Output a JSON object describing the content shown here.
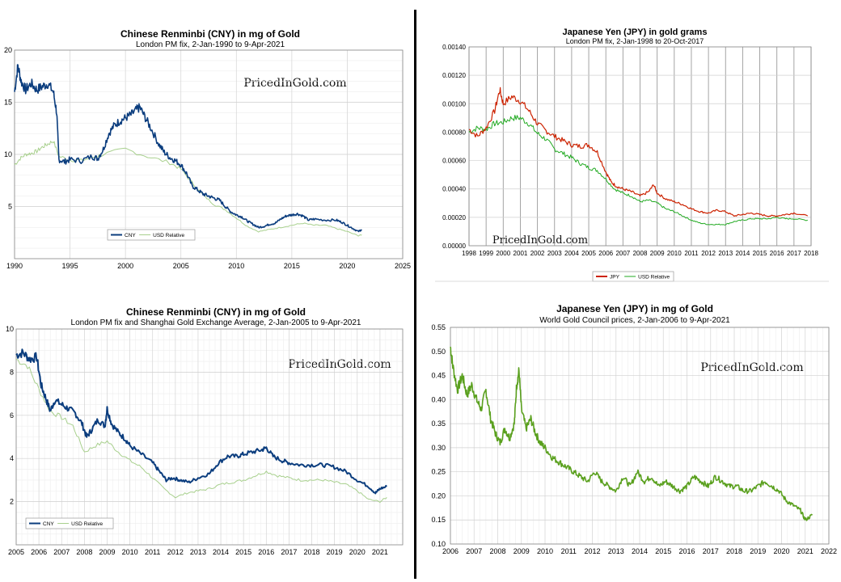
{
  "watermark": "PricedInGold.com",
  "chart_data": [
    {
      "type": "line",
      "title": "Chinese Renminbi (CNY) in mg of Gold",
      "subtitle": "London PM fix, 2-Jan-1990 to 9-Apr-2021",
      "xlim": [
        1990,
        2025
      ],
      "ylim": [
        0,
        20
      ],
      "xticks": [
        1990,
        1995,
        2000,
        2005,
        2010,
        2015,
        2020,
        2025
      ],
      "yticks": [
        5,
        10,
        15,
        20
      ],
      "legend": "bottom-right",
      "grid": true,
      "series": [
        {
          "name": "CNY",
          "color": "#0b3d7e",
          "x": [
            1990.0,
            1990.3,
            1990.6,
            1991.0,
            1991.5,
            1992.0,
            1992.5,
            1993.0,
            1993.5,
            1993.8,
            1994.0,
            1994.5,
            1995.0,
            1996.0,
            1997.0,
            1997.5,
            1998.0,
            1998.5,
            1999.0,
            1999.5,
            2000.0,
            2000.5,
            2001.0,
            2001.3,
            2001.8,
            2002.3,
            2003.0,
            2003.5,
            2004.0,
            2004.5,
            2005.0,
            2005.5,
            2006.0,
            2006.5,
            2007.0,
            2007.5,
            2008.0,
            2008.5,
            2009.0,
            2009.5,
            2010.0,
            2010.5,
            2011.0,
            2011.5,
            2012.0,
            2012.5,
            2013.0,
            2013.5,
            2014.0,
            2014.5,
            2015.0,
            2015.5,
            2016.0,
            2016.5,
            2017.0,
            2018.0,
            2019.0,
            2019.5,
            2020.0,
            2020.5,
            2021.0,
            2021.3
          ],
          "values": [
            16.0,
            18.5,
            17.0,
            16.2,
            16.8,
            16.2,
            16.5,
            16.8,
            16.0,
            14.0,
            9.5,
            9.3,
            9.5,
            9.4,
            9.8,
            9.6,
            10.5,
            12.0,
            12.8,
            13.2,
            13.5,
            13.8,
            14.3,
            14.5,
            13.5,
            12.5,
            11.0,
            10.2,
            9.7,
            9.4,
            9.0,
            8.2,
            7.0,
            6.6,
            6.2,
            6.0,
            5.8,
            5.6,
            5.0,
            4.5,
            4.2,
            4.0,
            3.6,
            3.3,
            3.0,
            3.1,
            3.3,
            3.4,
            3.8,
            4.1,
            4.2,
            4.3,
            4.1,
            3.7,
            3.8,
            3.7,
            3.7,
            3.5,
            3.2,
            2.9,
            2.6,
            2.8
          ]
        },
        {
          "name": "USD Relative",
          "color": "#a8d08d",
          "x": [
            1990.0,
            1990.5,
            1991.0,
            1991.5,
            1992.0,
            1992.5,
            1993.0,
            1993.5,
            1994.0,
            1995.0,
            1996.0,
            1997.0,
            1998.0,
            2000.0,
            2002.0,
            2004.0,
            2005.0,
            2006.0,
            2007.0,
            2008.0,
            2009.0,
            2010.0,
            2011.0,
            2012.0,
            2013.0,
            2014.0,
            2015.0,
            2016.0,
            2017.0,
            2018.0,
            2019.0,
            2020.0,
            2021.0,
            2021.3
          ],
          "values": [
            9.0,
            9.6,
            10.0,
            10.1,
            10.3,
            10.7,
            11.0,
            11.3,
            9.8,
            9.5,
            9.4,
            9.7,
            10.0,
            10.5,
            9.8,
            9.2,
            8.6,
            7.3,
            6.1,
            5.2,
            4.7,
            3.9,
            3.1,
            2.6,
            2.8,
            3.0,
            3.2,
            3.4,
            3.2,
            3.2,
            2.9,
            2.6,
            2.2,
            2.3
          ]
        }
      ]
    },
    {
      "type": "line",
      "title": "Japanese Yen (JPY) in gold grams",
      "subtitle": "London PM fix, 2-Jan-1998 to 20-Oct-2017",
      "xlim": [
        1998,
        2018
      ],
      "ylim": [
        0,
        0.0014
      ],
      "xticks": [
        1998,
        1999,
        2000,
        2001,
        2002,
        2003,
        2004,
        2005,
        2006,
        2007,
        2008,
        2009,
        2010,
        2011,
        2012,
        2013,
        2014,
        2015,
        2016,
        2017,
        2018
      ],
      "yticks_labels": [
        "0.00000",
        "0.00020",
        "0.00040",
        "0.00060",
        "0.00080",
        "0.00100",
        "0.00120",
        "0.00140"
      ],
      "yticks": [
        0,
        0.0002,
        0.0004,
        0.0006,
        0.0008,
        0.001,
        0.0012,
        0.0014
      ],
      "legend": "bottom-center",
      "grid": true,
      "series": [
        {
          "name": "JPY",
          "color": "#cc2200",
          "x": [
            1998.0,
            1998.5,
            1999.0,
            1999.5,
            1999.8,
            2000.0,
            2000.5,
            2001.0,
            2001.5,
            2002.0,
            2002.5,
            2003.0,
            2003.5,
            2004.0,
            2004.5,
            2005.0,
            2005.5,
            2006.0,
            2006.3,
            2006.6,
            2007.0,
            2007.5,
            2008.0,
            2008.5,
            2008.8,
            2009.0,
            2009.5,
            2010.0,
            2010.5,
            2011.0,
            2011.5,
            2012.0,
            2012.5,
            2013.0,
            2013.5,
            2014.0,
            2014.5,
            2015.0,
            2015.5,
            2016.0,
            2016.5,
            2017.0,
            2017.8
          ],
          "values": [
            0.00082,
            0.00077,
            0.00083,
            0.00095,
            0.0011,
            0.001,
            0.00105,
            0.00102,
            0.00095,
            0.00086,
            0.00081,
            0.00077,
            0.00074,
            0.00071,
            0.0007,
            0.00071,
            0.00066,
            0.00052,
            0.00045,
            0.00042,
            0.0004,
            0.00038,
            0.00035,
            0.00038,
            0.00043,
            0.00037,
            0.00033,
            0.00031,
            0.00029,
            0.00026,
            0.00024,
            0.00023,
            0.00025,
            0.00024,
            0.00021,
            0.00022,
            0.00023,
            0.00022,
            0.00021,
            0.00021,
            0.00022,
            0.00023,
            0.00021
          ]
        },
        {
          "name": "USD Relative",
          "color": "#22aa22",
          "x": [
            1998.0,
            1998.5,
            1999.0,
            1999.5,
            2000.0,
            2000.5,
            2001.0,
            2001.5,
            2002.0,
            2002.5,
            2003.0,
            2003.5,
            2004.0,
            2004.5,
            2005.0,
            2005.5,
            2006.0,
            2006.5,
            2007.0,
            2007.5,
            2008.0,
            2008.5,
            2009.0,
            2009.5,
            2010.0,
            2010.5,
            2011.0,
            2011.5,
            2012.0,
            2012.5,
            2013.0,
            2013.5,
            2014.0,
            2014.5,
            2015.0,
            2015.5,
            2016.0,
            2016.5,
            2017.0,
            2017.8
          ],
          "values": [
            0.0008,
            0.00083,
            0.00082,
            0.00086,
            0.00087,
            0.0009,
            0.0009,
            0.00086,
            0.00079,
            0.00075,
            0.00068,
            0.00065,
            0.00062,
            0.00058,
            0.00055,
            0.00053,
            0.00047,
            0.0004,
            0.00037,
            0.00035,
            0.00031,
            0.00032,
            0.0003,
            0.00026,
            0.00024,
            0.00021,
            0.00018,
            0.00016,
            0.00015,
            0.00015,
            0.00015,
            0.00017,
            0.00018,
            0.00019,
            0.00019,
            0.00019,
            0.0002,
            0.00019,
            0.00019,
            0.00018
          ]
        }
      ]
    },
    {
      "type": "line",
      "title": "Chinese Renminbi (CNY) in mg of Gold",
      "subtitle": "London PM fix and Shanghai Gold Exchange Average, 2-Jan-2005 to 9-Apr-2021",
      "xlim": [
        2005,
        2022
      ],
      "ylim": [
        0,
        10
      ],
      "xticks": [
        2005,
        2006,
        2007,
        2008,
        2009,
        2010,
        2011,
        2012,
        2013,
        2014,
        2015,
        2016,
        2017,
        2018,
        2019,
        2020,
        2021
      ],
      "yticks": [
        2,
        4,
        6,
        8,
        10
      ],
      "legend": "bottom-left",
      "grid": true,
      "series": [
        {
          "name": "CNY",
          "color": "#0b3d7e",
          "x": [
            2005.0,
            2005.3,
            2005.6,
            2005.9,
            2006.1,
            2006.3,
            2006.5,
            2006.7,
            2007.0,
            2007.3,
            2007.6,
            2007.9,
            2008.1,
            2008.3,
            2008.6,
            2008.9,
            2009.0,
            2009.2,
            2009.5,
            2009.8,
            2010.0,
            2010.5,
            2011.0,
            2011.3,
            2011.6,
            2011.9,
            2012.2,
            2012.6,
            2013.0,
            2013.5,
            2013.9,
            2014.3,
            2014.7,
            2015.0,
            2015.4,
            2015.8,
            2016.0,
            2016.3,
            2016.7,
            2017.0,
            2017.5,
            2018.0,
            2018.5,
            2019.0,
            2019.5,
            2020.0,
            2020.5,
            2020.8,
            2021.0,
            2021.3
          ],
          "values": [
            8.8,
            8.9,
            8.6,
            8.7,
            7.4,
            6.8,
            6.2,
            6.7,
            6.5,
            6.3,
            6.1,
            5.6,
            5.0,
            5.3,
            5.8,
            5.5,
            6.3,
            5.6,
            5.2,
            4.9,
            4.6,
            4.2,
            3.8,
            3.4,
            3.0,
            3.1,
            3.0,
            2.9,
            3.1,
            3.3,
            3.8,
            4.1,
            4.1,
            4.2,
            4.3,
            4.4,
            4.5,
            4.1,
            3.9,
            3.8,
            3.7,
            3.7,
            3.7,
            3.6,
            3.4,
            3.0,
            2.7,
            2.4,
            2.6,
            2.7
          ]
        },
        {
          "name": "USD Relative",
          "color": "#a8d08d",
          "x": [
            2005.0,
            2005.5,
            2006.0,
            2006.5,
            2007.0,
            2007.5,
            2008.0,
            2008.5,
            2009.0,
            2009.5,
            2010.0,
            2010.5,
            2011.0,
            2011.5,
            2012.0,
            2012.5,
            2013.0,
            2013.5,
            2014.0,
            2014.5,
            2015.0,
            2015.5,
            2016.0,
            2016.5,
            2017.0,
            2017.5,
            2018.0,
            2018.5,
            2019.0,
            2019.5,
            2020.0,
            2020.5,
            2021.0,
            2021.3
          ],
          "values": [
            8.6,
            8.3,
            7.2,
            6.2,
            5.9,
            5.5,
            4.3,
            4.6,
            4.8,
            4.3,
            3.9,
            3.6,
            3.1,
            2.6,
            2.2,
            2.4,
            2.5,
            2.6,
            2.8,
            2.9,
            3.0,
            3.2,
            3.4,
            3.2,
            3.1,
            3.0,
            3.0,
            3.0,
            2.9,
            2.8,
            2.5,
            2.1,
            2.0,
            2.2
          ]
        }
      ]
    },
    {
      "type": "line",
      "title": "Japanese Yen (JPY) in mg of Gold",
      "subtitle": "World Gold Council prices, 2-Jan-2006 to 9-Apr-2021",
      "xlim": [
        2006,
        2022
      ],
      "ylim": [
        0.1,
        0.55
      ],
      "xticks": [
        2006,
        2007,
        2008,
        2009,
        2010,
        2011,
        2012,
        2013,
        2014,
        2015,
        2016,
        2017,
        2018,
        2019,
        2020,
        2021,
        2022
      ],
      "yticks": [
        0.1,
        0.15,
        0.2,
        0.25,
        0.3,
        0.35,
        0.4,
        0.45,
        0.5,
        0.55
      ],
      "yticks_labels": [
        "0.10",
        "0.15",
        "0.20",
        "0.25",
        "0.30",
        "0.35",
        "0.40",
        "0.45",
        "0.50",
        "0.55"
      ],
      "grid": true,
      "series": [
        {
          "name": "",
          "color": "#5aa01e",
          "x": [
            2006.0,
            2006.1,
            2006.3,
            2006.5,
            2006.7,
            2006.9,
            2007.1,
            2007.3,
            2007.5,
            2007.7,
            2007.9,
            2008.1,
            2008.3,
            2008.5,
            2008.7,
            2008.8,
            2008.9,
            2009.0,
            2009.2,
            2009.4,
            2009.6,
            2009.8,
            2010.0,
            2010.3,
            2010.6,
            2010.9,
            2011.2,
            2011.5,
            2011.8,
            2012.1,
            2012.4,
            2012.7,
            2013.0,
            2013.3,
            2013.6,
            2013.9,
            2014.2,
            2014.5,
            2014.8,
            2015.1,
            2015.4,
            2015.7,
            2016.0,
            2016.3,
            2016.6,
            2016.9,
            2017.2,
            2017.5,
            2017.8,
            2018.1,
            2018.4,
            2018.7,
            2019.0,
            2019.3,
            2019.6,
            2019.9,
            2020.2,
            2020.5,
            2020.8,
            2021.0,
            2021.3
          ],
          "values": [
            0.51,
            0.47,
            0.42,
            0.45,
            0.41,
            0.43,
            0.4,
            0.38,
            0.42,
            0.36,
            0.33,
            0.31,
            0.34,
            0.32,
            0.35,
            0.43,
            0.46,
            0.38,
            0.34,
            0.36,
            0.33,
            0.31,
            0.3,
            0.28,
            0.27,
            0.26,
            0.25,
            0.24,
            0.23,
            0.25,
            0.23,
            0.22,
            0.21,
            0.24,
            0.22,
            0.25,
            0.23,
            0.24,
            0.22,
            0.23,
            0.22,
            0.21,
            0.22,
            0.24,
            0.23,
            0.22,
            0.24,
            0.23,
            0.22,
            0.22,
            0.21,
            0.21,
            0.22,
            0.23,
            0.22,
            0.21,
            0.19,
            0.18,
            0.17,
            0.15,
            0.16
          ]
        }
      ]
    }
  ]
}
